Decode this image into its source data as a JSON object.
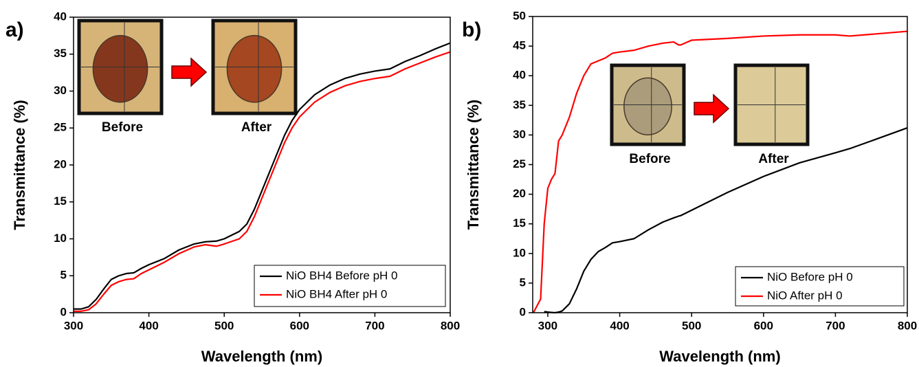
{
  "chart_data": [
    {
      "type": "line",
      "panel_label": "a)",
      "xlabel": "Wavelength (nm)",
      "ylabel": "Transmittance (%)",
      "xlim": [
        300,
        800
      ],
      "ylim": [
        0,
        40
      ],
      "xticks": [
        300,
        400,
        500,
        600,
        700,
        800
      ],
      "yticks": [
        0,
        5,
        10,
        15,
        20,
        25,
        30,
        35,
        40
      ],
      "legend": "lower right",
      "inset_labels": [
        "Before",
        "After"
      ],
      "x": [
        300,
        310,
        320,
        330,
        340,
        350,
        360,
        370,
        380,
        390,
        400,
        420,
        440,
        460,
        475,
        490,
        500,
        520,
        530,
        540,
        550,
        560,
        570,
        580,
        590,
        600,
        620,
        640,
        660,
        680,
        700,
        720,
        740,
        760,
        780,
        800
      ],
      "series": [
        {
          "name": "NiO BH4 Before pH 0",
          "color": "#000000",
          "values": [
            0.5,
            0.5,
            0.8,
            1.8,
            3.2,
            4.5,
            5.0,
            5.3,
            5.4,
            6.0,
            6.5,
            7.3,
            8.5,
            9.3,
            9.6,
            9.7,
            10.0,
            11.0,
            12.0,
            14.0,
            16.5,
            19.0,
            21.5,
            24.0,
            26.0,
            27.5,
            29.5,
            30.8,
            31.7,
            32.3,
            32.7,
            33.0,
            34.0,
            34.8,
            35.7,
            36.5
          ]
        },
        {
          "name": "NiO BH4 After pH 0",
          "color": "#ff0000",
          "values": [
            0.2,
            0.2,
            0.4,
            1.2,
            2.5,
            3.7,
            4.2,
            4.5,
            4.6,
            5.3,
            5.8,
            6.8,
            8.0,
            8.9,
            9.2,
            9.0,
            9.3,
            10.0,
            11.0,
            13.0,
            15.5,
            18.0,
            20.5,
            23.0,
            25.0,
            26.5,
            28.5,
            29.8,
            30.7,
            31.3,
            31.7,
            32.0,
            33.0,
            33.8,
            34.6,
            35.3
          ]
        }
      ]
    },
    {
      "type": "line",
      "panel_label": "b)",
      "xlabel": "Wavelength (nm)",
      "ylabel": "Transmittance (%)",
      "xlim": [
        279,
        800
      ],
      "ylim": [
        0,
        50
      ],
      "xticks": [
        300,
        400,
        500,
        600,
        700,
        800
      ],
      "yticks": [
        0,
        5,
        10,
        15,
        20,
        25,
        30,
        35,
        40,
        45,
        50
      ],
      "legend": "lower right",
      "inset_labels": [
        "Before",
        "After"
      ],
      "x": [
        280,
        290,
        295,
        300,
        305,
        310,
        315,
        320,
        330,
        340,
        350,
        360,
        370,
        380,
        390,
        400,
        420,
        440,
        460,
        475,
        482,
        485,
        500,
        550,
        600,
        650,
        700,
        720,
        750,
        800
      ],
      "series": [
        {
          "name": "NiO Before pH 0",
          "color": "#000000",
          "values": [
            null,
            null,
            0.2,
            0.1,
            0.05,
            0.0,
            0.1,
            0.3,
            1.5,
            4.0,
            7.0,
            9.0,
            10.3,
            11.0,
            11.8,
            12.0,
            12.5,
            14.0,
            15.3,
            16.0,
            16.3,
            16.4,
            17.3,
            20.3,
            23.0,
            25.3,
            27.0,
            27.7,
            29.0,
            31.2
          ]
        },
        {
          "name": "NiO After pH 0",
          "color": "#ff0000",
          "values": [
            0,
            2.3,
            15,
            21,
            22.5,
            23.5,
            29,
            30,
            33,
            37,
            40,
            42,
            42.5,
            43,
            43.8,
            44.0,
            44.3,
            45.0,
            45.5,
            45.7,
            45.2,
            45.2,
            46.0,
            46.3,
            46.7,
            46.9,
            46.9,
            46.7,
            47.0,
            47.5
          ]
        }
      ]
    }
  ]
}
